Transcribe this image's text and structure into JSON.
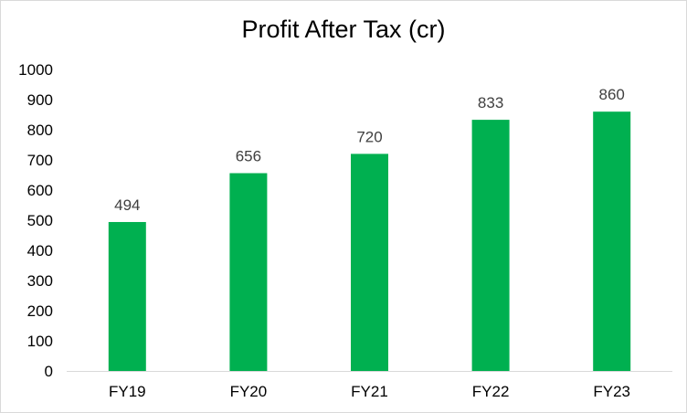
{
  "chart_data": {
    "type": "bar",
    "title": "Profit After Tax (cr)",
    "categories": [
      "FY19",
      "FY20",
      "FY21",
      "FY22",
      "FY23"
    ],
    "values": [
      494,
      656,
      720,
      833,
      860
    ],
    "data_labels": [
      "494",
      "656",
      "720",
      "833",
      "860"
    ],
    "y_ticks": [
      "0",
      "100",
      "200",
      "300",
      "400",
      "500",
      "600",
      "700",
      "800",
      "900",
      "1000"
    ],
    "ylim": [
      0,
      1000
    ],
    "grid": false,
    "legend": "none",
    "bar_color": "#00b050"
  }
}
